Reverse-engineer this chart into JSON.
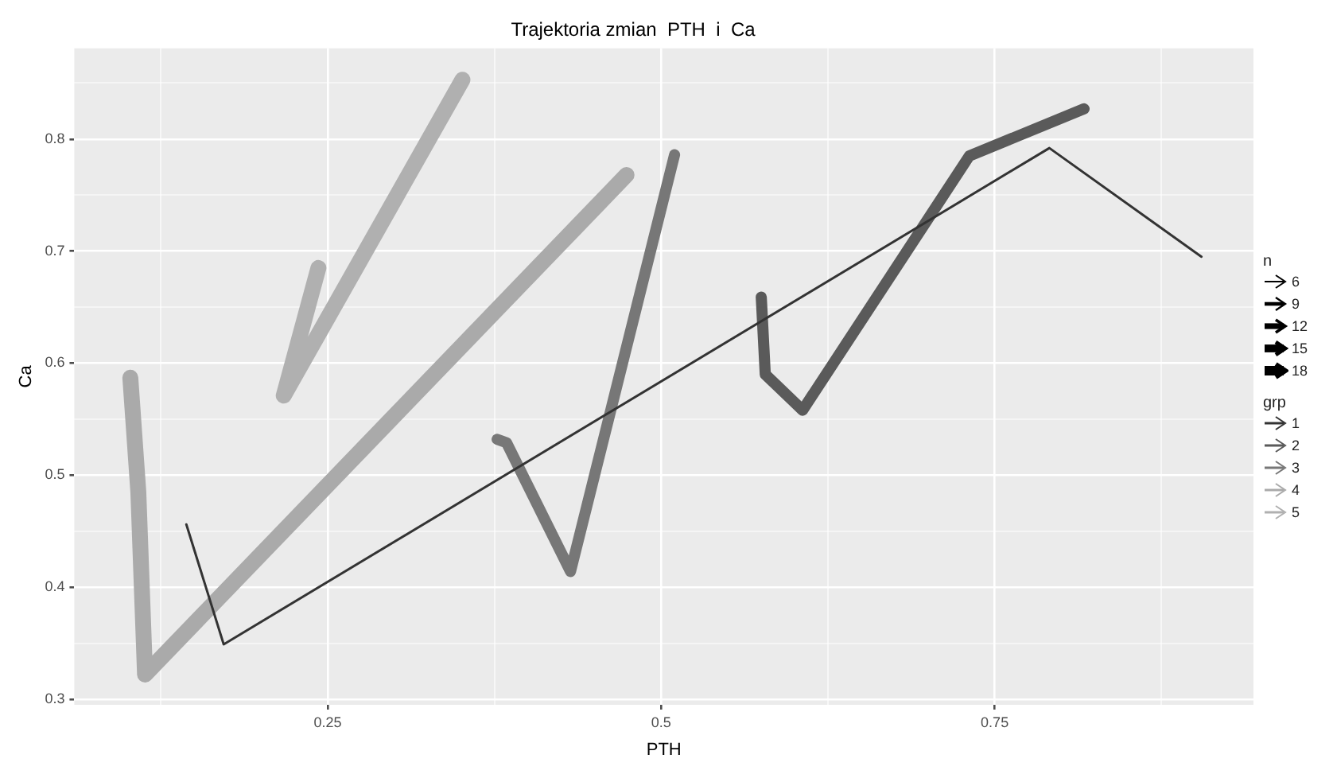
{
  "chart_data": {
    "type": "line",
    "title": "Trajektoria zmian  PTH  i  Ca",
    "xlabel": "PTH",
    "ylabel": "Ca",
    "xlim": [
      0.06,
      0.944
    ],
    "ylim": [
      0.295,
      0.881
    ],
    "xticks": [
      {
        "value": 0.125,
        "label": null
      },
      0.25,
      {
        "value": 0.375,
        "label": null
      },
      0.5,
      {
        "value": 0.625,
        "label": null
      },
      0.75,
      {
        "value": 0.875,
        "label": null
      }
    ],
    "yticks": [
      0.3,
      {
        "value": 0.35,
        "label": null
      },
      0.4,
      {
        "value": 0.45,
        "label": null
      },
      0.5,
      {
        "value": 0.55,
        "label": null
      },
      0.6,
      {
        "value": 0.65,
        "label": null
      },
      0.7,
      {
        "value": 0.75,
        "label": null
      },
      0.8,
      {
        "value": 0.85,
        "label": null
      }
    ],
    "grid": true,
    "legend": "right",
    "legend_title": "grp",
    "marker": "none",
    "line_style": "solid",
    "annotations": [
      "n",
      "6",
      "9",
      "12",
      "15",
      "18"
    ],
    "series": [
      {
        "name": "1",
        "color": "#333333",
        "x": [
          0.905,
          0.791,
          0.172,
          0.144
        ],
        "values": [
          0.695,
          0.792,
          0.349,
          0.456
        ]
      },
      {
        "name": "2",
        "color": "#5a5a5a",
        "x": [
          0.575,
          0.578,
          0.606,
          0.731,
          0.817
        ],
        "values": [
          0.659,
          0.59,
          0.558,
          0.785,
          0.827
        ]
      },
      {
        "name": "3",
        "color": "#777777",
        "x": [
          0.377,
          0.384,
          0.432,
          0.51
        ],
        "values": [
          0.532,
          0.529,
          0.414,
          0.786
        ]
      },
      {
        "name": "4",
        "color": "#aaaaaa",
        "x": [
          0.102,
          0.108,
          0.113,
          0.474
        ],
        "values": [
          0.587,
          0.485,
          0.322,
          0.768
        ]
      },
      {
        "name": "5",
        "color": "#b0b0b0",
        "x": [
          0.243,
          0.217,
          0.351
        ],
        "values": [
          0.685,
          0.571,
          0.853
        ]
      }
    ]
  }
}
